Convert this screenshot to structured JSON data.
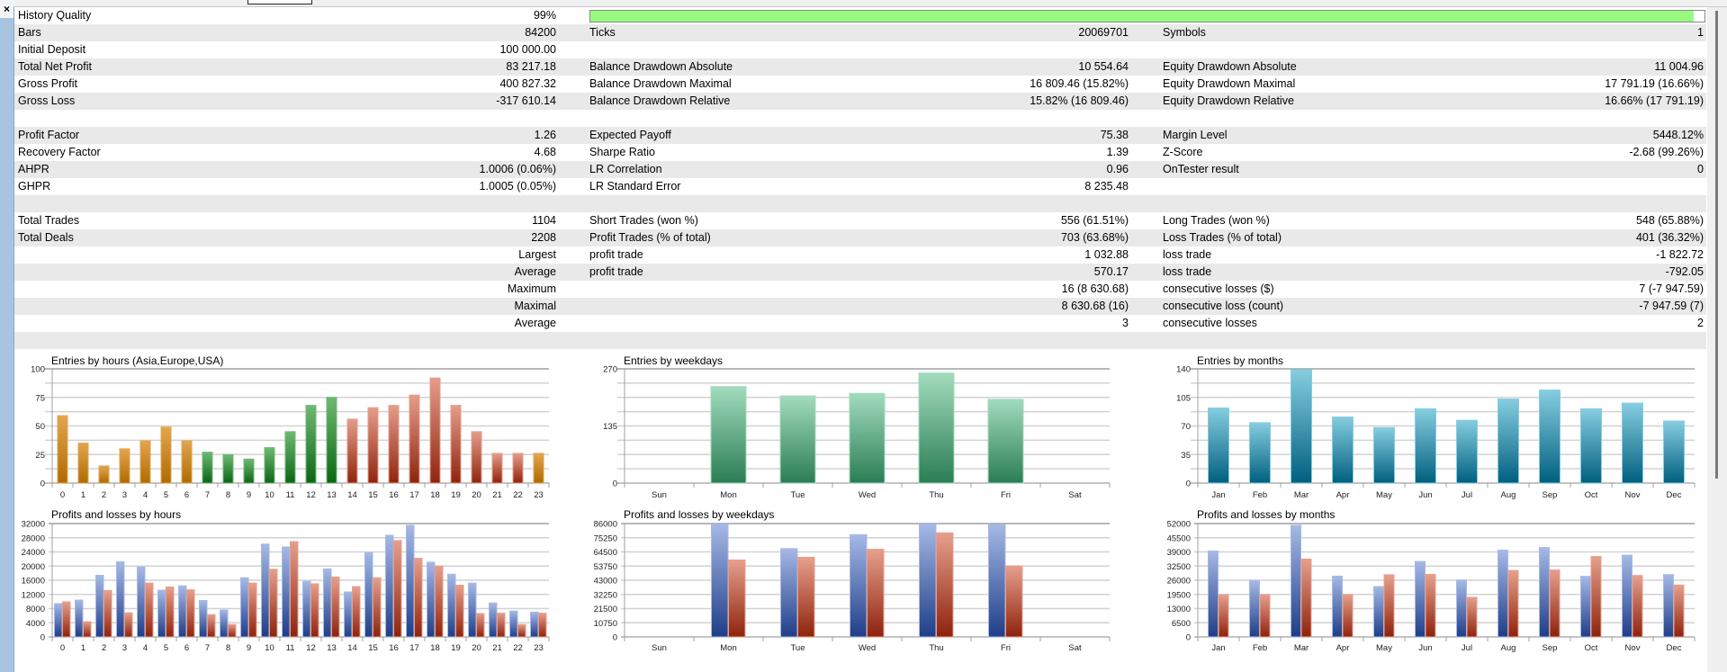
{
  "window": {
    "close_label": "×"
  },
  "report": {
    "history_quality_fill": 99,
    "rows": [
      {
        "cells": [
          "History Quality",
          "99%",
          "",
          "",
          "",
          ""
        ]
      },
      {
        "cells": [
          "Bars",
          "84200",
          "Ticks",
          "20069701",
          "Symbols",
          "1"
        ]
      },
      {
        "cells": [
          "Initial Deposit",
          "100 000.00",
          "",
          "",
          "",
          ""
        ]
      },
      {
        "cells": [
          "Total Net Profit",
          "83 217.18",
          "Balance Drawdown Absolute",
          "10 554.64",
          "Equity Drawdown Absolute",
          "11 004.96"
        ]
      },
      {
        "cells": [
          "Gross Profit",
          "400 827.32",
          "Balance Drawdown Maximal",
          "16 809.46 (15.82%)",
          "Equity Drawdown Maximal",
          "17 791.19 (16.66%)"
        ]
      },
      {
        "cells": [
          "Gross Loss",
          "-317 610.14",
          "Balance Drawdown Relative",
          "15.82% (16 809.46)",
          "Equity Drawdown Relative",
          "16.66% (17 791.19)"
        ]
      },
      {
        "cells": [
          "",
          "",
          "",
          "",
          "",
          ""
        ]
      },
      {
        "cells": [
          "Profit Factor",
          "1.26",
          "Expected Payoff",
          "75.38",
          "Margin Level",
          "5448.12%"
        ]
      },
      {
        "cells": [
          "Recovery Factor",
          "4.68",
          "Sharpe Ratio",
          "1.39",
          "Z-Score",
          "-2.68 (99.26%)"
        ]
      },
      {
        "cells": [
          "AHPR",
          "1.0006 (0.06%)",
          "LR Correlation",
          "0.96",
          "OnTester result",
          "0"
        ]
      },
      {
        "cells": [
          "GHPR",
          "1.0005 (0.05%)",
          "LR Standard Error",
          "8 235.48",
          "",
          ""
        ]
      },
      {
        "cells": [
          "",
          "",
          "",
          "",
          "",
          ""
        ]
      },
      {
        "cells": [
          "Total Trades",
          "1104",
          "Short Trades (won %)",
          "556 (61.51%)",
          "Long Trades (won %)",
          "548 (65.88%)"
        ]
      },
      {
        "cells": [
          "Total Deals",
          "2208",
          "Profit Trades (% of total)",
          "703 (63.68%)",
          "Loss Trades (% of total)",
          "401 (36.32%)"
        ]
      },
      {
        "cells": [
          "",
          "Largest",
          "profit trade",
          "1 032.88",
          "loss trade",
          "-1 822.72"
        ]
      },
      {
        "cells": [
          "",
          "Average",
          "profit trade",
          "570.17",
          "loss trade",
          "-792.05"
        ]
      },
      {
        "cells": [
          "",
          "Maximum",
          "",
          "16 (8 630.68)",
          "consecutive losses ($)",
          "7 (-7 947.59)"
        ]
      },
      {
        "cells": [
          "",
          "Maximal",
          "",
          "8 630.68 (16)",
          "consecutive loss (count)",
          "-7 947.59 (7)"
        ]
      },
      {
        "cells": [
          "",
          "Average",
          "",
          "3",
          "consecutive losses",
          "2"
        ]
      },
      {
        "cells": [
          "",
          "",
          "",
          "",
          "",
          ""
        ]
      }
    ]
  },
  "colors": {
    "orange": [
      "#b06a00",
      "#e2a650"
    ],
    "green": [
      "#0b6516",
      "#6fb874"
    ],
    "red": [
      "#8f230d",
      "#e59d8b"
    ],
    "mint": [
      "#2a7d55",
      "#a2dbbd"
    ],
    "teal": [
      "#005f7f",
      "#86cde0"
    ],
    "profit": [
      "#1f3d88",
      "#a6b9e6"
    ],
    "loss": [
      "#8e220c",
      "#e6a08d"
    ]
  },
  "chart_data": [
    {
      "type": "bar",
      "title": "Entries by hours (Asia,Europe,USA)",
      "categories": [
        "0",
        "1",
        "2",
        "3",
        "4",
        "5",
        "6",
        "7",
        "8",
        "9",
        "10",
        "11",
        "12",
        "13",
        "14",
        "15",
        "16",
        "17",
        "18",
        "19",
        "20",
        "21",
        "22",
        "23"
      ],
      "values": [
        59,
        35,
        15,
        30,
        37,
        49,
        37,
        27,
        25,
        21,
        31,
        45,
        68,
        75,
        56,
        66,
        68,
        77,
        92,
        68,
        45,
        26,
        26,
        26
      ],
      "bar_colors": [
        "orange",
        "orange",
        "orange",
        "orange",
        "orange",
        "orange",
        "orange",
        "green",
        "green",
        "green",
        "green",
        "green",
        "green",
        "green",
        "red",
        "red",
        "red",
        "red",
        "red",
        "red",
        "red",
        "red",
        "red",
        "orange"
      ],
      "ylim": [
        0,
        100
      ],
      "yticks": [
        "0",
        "",
        "25",
        "",
        "50",
        "",
        "75",
        "",
        "100"
      ]
    },
    {
      "type": "bar",
      "title": "Entries by weekdays",
      "categories": [
        "Sun",
        "Mon",
        "Tue",
        "Wed",
        "Thu",
        "Fri",
        "Sat"
      ],
      "values": [
        0,
        228,
        206,
        212,
        260,
        198,
        0
      ],
      "bar_color": "mint",
      "ylim": [
        0,
        270
      ],
      "yticks": [
        "0",
        "",
        "",
        "",
        "135",
        "",
        "",
        "",
        "270"
      ]
    },
    {
      "type": "bar",
      "title": "Entries by months",
      "categories": [
        "Jan",
        "Feb",
        "Mar",
        "Apr",
        "May",
        "Jun",
        "Jul",
        "Aug",
        "Sep",
        "Oct",
        "Nov",
        "Dec"
      ],
      "values": [
        92,
        74,
        139,
        81,
        68,
        91,
        77,
        103,
        114,
        91,
        98,
        76
      ],
      "bar_color": "teal",
      "ylim": [
        0,
        140
      ],
      "yticks": [
        "0",
        "",
        "35",
        "",
        "70",
        "",
        "105",
        "",
        "140"
      ]
    },
    {
      "type": "bar",
      "title": "Profits and losses by hours",
      "categories": [
        "0",
        "1",
        "2",
        "3",
        "4",
        "5",
        "6",
        "7",
        "8",
        "9",
        "10",
        "11",
        "12",
        "13",
        "14",
        "15",
        "16",
        "17",
        "18",
        "19",
        "20",
        "21",
        "22",
        "23"
      ],
      "series": [
        {
          "name": "profits",
          "color": "profit",
          "values": [
            9400,
            10400,
            17400,
            21200,
            19700,
            13200,
            14400,
            10300,
            7600,
            16700,
            26200,
            25400,
            15700,
            19200,
            12700,
            23800,
            28700,
            31500,
            21100,
            17700,
            15200,
            9600,
            7300,
            7000
          ]
        },
        {
          "name": "losses",
          "color": "loss",
          "values": [
            9900,
            4300,
            13100,
            6800,
            15200,
            14100,
            13300,
            6300,
            3500,
            15200,
            19100,
            26900,
            15000,
            16900,
            14200,
            16700,
            27200,
            22200,
            20000,
            14600,
            6600,
            6700,
            3500,
            6700
          ]
        }
      ],
      "ylim": [
        0,
        32000
      ],
      "yticks": [
        "0",
        "4000",
        "8000",
        "12000",
        "16000",
        "20000",
        "24000",
        "28000",
        "32000"
      ]
    },
    {
      "type": "bar",
      "title": "Profits and losses by weekdays",
      "categories": [
        "Sun",
        "Mon",
        "Tue",
        "Wed",
        "Thu",
        "Fri",
        "Sat"
      ],
      "series": [
        {
          "name": "profits",
          "color": "profit",
          "values": [
            0,
            85500,
            67000,
            77600,
            85500,
            85200,
            0
          ]
        },
        {
          "name": "losses",
          "color": "loss",
          "values": [
            0,
            58400,
            60400,
            66500,
            79000,
            53900,
            0
          ]
        }
      ],
      "ylim": [
        0,
        86000
      ],
      "yticks": [
        "0",
        "10750",
        "21500",
        "32250",
        "43000",
        "53750",
        "64500",
        "75250",
        "86000"
      ]
    },
    {
      "type": "bar",
      "title": "Profits and losses by months",
      "categories": [
        "Jan",
        "Feb",
        "Mar",
        "Apr",
        "May",
        "Jun",
        "Jul",
        "Aug",
        "Sep",
        "Oct",
        "Nov",
        "Dec"
      ],
      "series": [
        {
          "name": "profits",
          "color": "profit",
          "values": [
            39400,
            25900,
            51200,
            27900,
            23100,
            34600,
            26100,
            39800,
            41000,
            27800,
            37500,
            28600
          ]
        },
        {
          "name": "losses",
          "color": "loss",
          "values": [
            19300,
            19400,
            35700,
            19400,
            28500,
            28700,
            18200,
            30500,
            30700,
            36900,
            28200,
            23800
          ]
        }
      ],
      "ylim": [
        0,
        52000
      ],
      "yticks": [
        "0",
        "6500",
        "13000",
        "19500",
        "26000",
        "32500",
        "39000",
        "45500",
        "52000"
      ]
    }
  ]
}
